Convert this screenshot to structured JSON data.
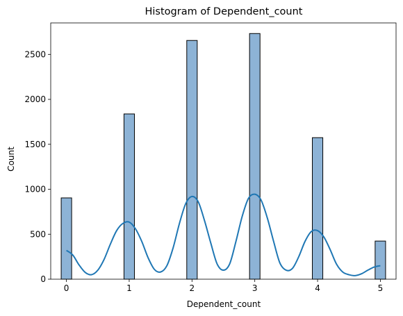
{
  "chart_data": {
    "type": "bar",
    "title": "Histogram of Dependent_count",
    "xlabel": "Dependent_count",
    "ylabel": "Count",
    "xlim": [
      -0.25,
      5.25
    ],
    "ylim": [
      0,
      2850
    ],
    "xticks": [
      "0",
      "1",
      "2",
      "3",
      "4",
      "5"
    ],
    "yticks": [
      "0",
      "500",
      "1000",
      "1500",
      "2000",
      "2500"
    ],
    "bins": [
      {
        "x": 0,
        "count": 904
      },
      {
        "x": 1,
        "count": 1838
      },
      {
        "x": 2,
        "count": 2655
      },
      {
        "x": 3,
        "count": 2732
      },
      {
        "x": 4,
        "count": 1574
      },
      {
        "x": 5,
        "count": 424
      }
    ],
    "kde": {
      "x": [
        0,
        0.1,
        0.2,
        0.3,
        0.4,
        0.5,
        0.6,
        0.7,
        0.8,
        0.9,
        1.0,
        1.1,
        1.2,
        1.3,
        1.4,
        1.5,
        1.6,
        1.7,
        1.8,
        1.9,
        2.0,
        2.1,
        2.2,
        2.3,
        2.4,
        2.5,
        2.6,
        2.7,
        2.8,
        2.9,
        3.0,
        3.1,
        3.2,
        3.3,
        3.4,
        3.5,
        3.6,
        3.7,
        3.8,
        3.9,
        4.0,
        4.1,
        4.2,
        4.3,
        4.4,
        4.5,
        4.6,
        4.7,
        4.8,
        4.9,
        5.0
      ],
      "y": [
        320,
        270,
        160,
        75,
        50,
        100,
        220,
        390,
        540,
        620,
        635,
        560,
        420,
        240,
        110,
        80,
        150,
        350,
        620,
        840,
        920,
        860,
        650,
        400,
        170,
        100,
        170,
        420,
        700,
        900,
        945,
        880,
        680,
        420,
        180,
        100,
        120,
        250,
        420,
        530,
        540,
        470,
        330,
        170,
        80,
        50,
        40,
        60,
        100,
        135,
        150
      ]
    },
    "bar_fill": "#8db3d6",
    "bar_edge": "#000000",
    "kde_color": "#1f77b4",
    "grid": false,
    "legend": "none"
  }
}
